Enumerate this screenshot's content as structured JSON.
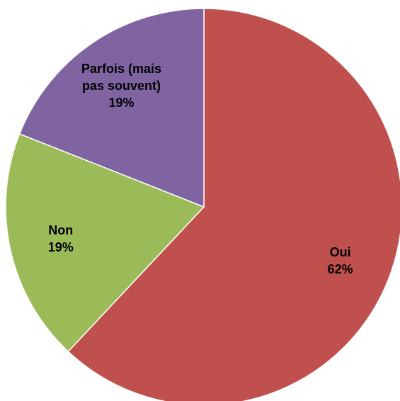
{
  "chart_data": {
    "type": "pie",
    "categories": [
      "Oui",
      "Non",
      "Parfois (mais pas souvent)"
    ],
    "values": [
      62,
      19,
      19
    ],
    "value_labels": [
      "62%",
      "19%",
      "19%"
    ],
    "colors": [
      "#c0504d",
      "#9bbb59",
      "#8064a2"
    ]
  }
}
